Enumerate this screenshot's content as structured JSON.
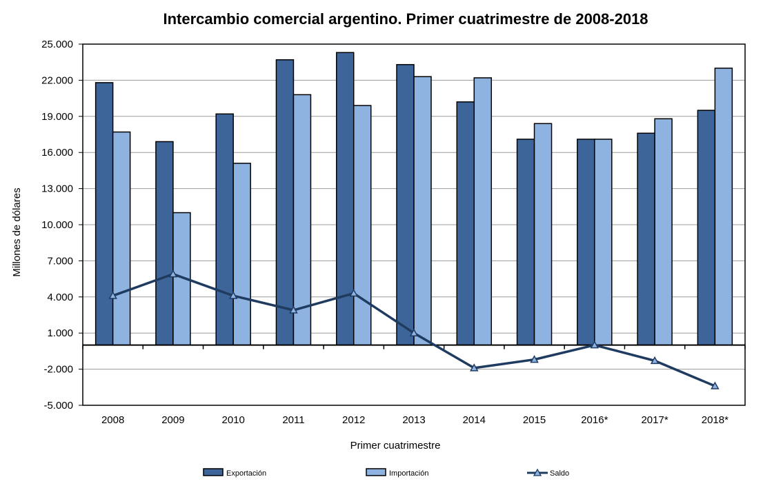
{
  "chart_data": {
    "type": "bar",
    "title": "Intercambio comercial argentino. Primer cuatrimestre de 2008-2018",
    "xlabel": "Primer cuatrimestre",
    "ylabel": "Millones de dólares",
    "ylim": [
      -5000,
      25000
    ],
    "yticks": [
      -5000,
      -2000,
      1000,
      4000,
      7000,
      10000,
      13000,
      16000,
      19000,
      22000,
      25000
    ],
    "ytick_labels": [
      "-5.000",
      "-2.000",
      "1.000",
      "4.000",
      "7.000",
      "10.000",
      "13.000",
      "16.000",
      "19.000",
      "22.000",
      "25.000"
    ],
    "categories": [
      "2008",
      "2009",
      "2010",
      "2011",
      "2012",
      "2013",
      "2014",
      "2015",
      "2016*",
      "2017*",
      "2018*"
    ],
    "grid": true,
    "legend_position": "bottom",
    "series": [
      {
        "name": "Exportación",
        "type": "bar",
        "color": "#3d6599",
        "values": [
          21800,
          16900,
          19200,
          23700,
          24300,
          23300,
          20200,
          17100,
          17100,
          17600,
          19500
        ]
      },
      {
        "name": "Importación",
        "type": "bar",
        "color": "#8fb3e0",
        "values": [
          17700,
          11000,
          15100,
          20800,
          19900,
          22300,
          22200,
          18400,
          17100,
          18800,
          23000
        ]
      },
      {
        "name": "Saldo",
        "type": "line",
        "color": "#1f3b60",
        "values": [
          4100,
          5900,
          4100,
          2900,
          4300,
          1000,
          -1900,
          -1200,
          0,
          -1300,
          -3400
        ]
      }
    ]
  }
}
